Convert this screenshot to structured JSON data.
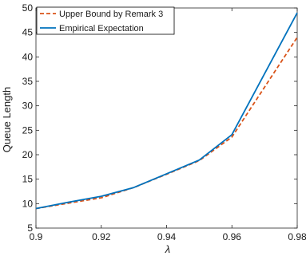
{
  "chart_data": {
    "type": "line",
    "x_label": "λ",
    "y_label": "Queue Length",
    "xlim": [
      0.9,
      0.98
    ],
    "ylim": [
      5,
      50
    ],
    "x_ticks": [
      "0.9",
      "0.92",
      "0.94",
      "0.96",
      "0.98"
    ],
    "y_ticks": [
      "5",
      "10",
      "15",
      "20",
      "25",
      "30",
      "35",
      "40",
      "45",
      "50"
    ],
    "grid": false,
    "legend_position": "top-left",
    "series": [
      {
        "name": "Upper Bound by Remark 3",
        "color": "#d95319",
        "style": "dashed",
        "x": [
          0.9,
          0.91,
          0.92,
          0.93,
          0.94,
          0.95,
          0.96,
          0.98
        ],
        "y": [
          9.0,
          10.1,
          11.2,
          13.3,
          16.0,
          18.8,
          23.6,
          44.0
        ]
      },
      {
        "name": "Empirical Expectation",
        "color": "#0072bd",
        "style": "solid",
        "x": [
          0.9,
          0.91,
          0.92,
          0.93,
          0.94,
          0.95,
          0.96,
          0.98
        ],
        "y": [
          9.0,
          10.3,
          11.5,
          13.3,
          16.1,
          18.9,
          24.1,
          49.0
        ]
      }
    ]
  }
}
